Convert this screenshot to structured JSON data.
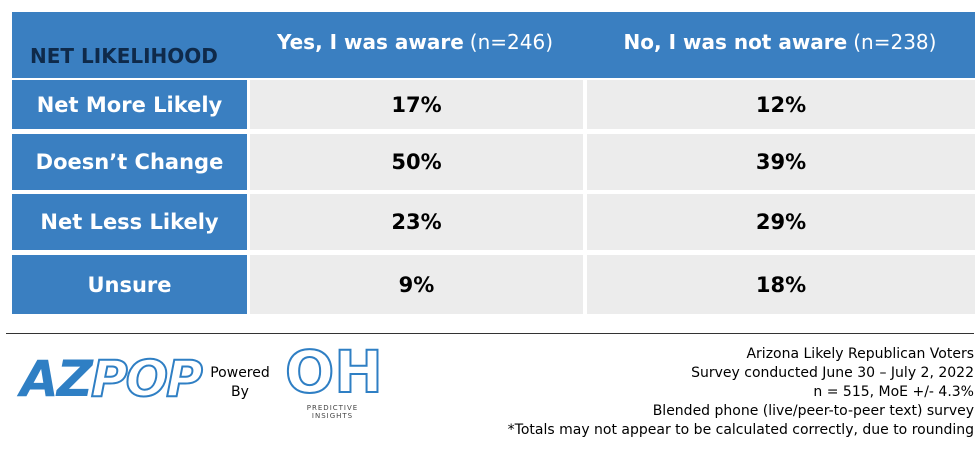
{
  "table": {
    "corner": "NET LIKELIHOOD",
    "columns": [
      {
        "title": "Yes, I was aware",
        "note": "(n=246)"
      },
      {
        "title": "No, I was not aware",
        "note": "(n=238)"
      }
    ],
    "rows": [
      {
        "label": "Net More Likely",
        "cells": [
          "17%",
          "12%"
        ]
      },
      {
        "label": "Doesn’t Change",
        "cells": [
          "50%",
          "39%"
        ]
      },
      {
        "label": "Net Less Likely",
        "cells": [
          "23%",
          "29%"
        ]
      },
      {
        "label": "Unsure",
        "cells": [
          "9%",
          "18%"
        ]
      }
    ]
  },
  "footer": {
    "logo_left": [
      "AZ",
      "POP"
    ],
    "powered_by": [
      "Powered",
      "By"
    ],
    "logo_right": [
      "OH",
      "PREDICTIVE",
      "INSIGHTS"
    ],
    "notes": [
      "Arizona Likely Republican Voters",
      "Survey conducted June 30 – July 2, 2022",
      "n = 515, MoE +/- 4.3%",
      "Blended phone (live/peer-to-peer text) survey",
      "*Totals may not appear to be calculated correctly, due to rounding"
    ]
  }
}
